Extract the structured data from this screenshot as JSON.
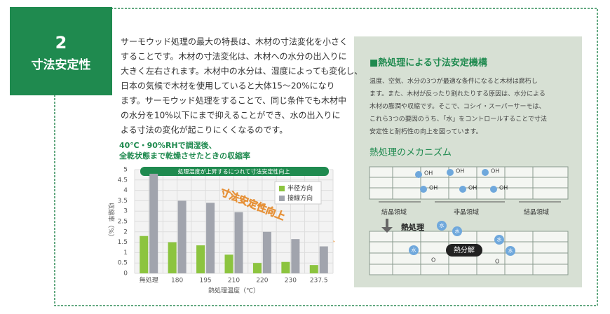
{
  "badge": {
    "number": "2",
    "title": "寸法安定性"
  },
  "body": {
    "lines": [
      "サーモウッド処理の最大の特長は、木材の寸法変化を小さく",
      "することです。木材の寸法変化は、木材への水分の出入りに",
      "大きく左右されます。木材中の水分は、湿度によっても変化し、",
      "日本の気候で木材を使用していると大体15〜20%になり",
      "ます。サーモウッド処理をすることで、同じ条件でも木材中",
      "の水分を10%以下にまで抑えることができ、水の出入りに",
      "よる寸法の変化が起こりにくくなるのです。"
    ]
  },
  "chart_data": {
    "type": "bar",
    "title": [
      "40℃・90%RHで調湿後、",
      "全乾状態まで乾燥させたときの収縮率"
    ],
    "banner": "処理温度が上昇するにつれて寸法安定性向上",
    "annotation": "寸法安定性向上",
    "x_label": "熱処理温度（℃）",
    "y_label": "収縮率（%）",
    "categories": [
      "無処理",
      "180",
      "195",
      "210",
      "220",
      "230",
      "237.5"
    ],
    "series": [
      {
        "name": "半径方向",
        "color": "#8cc43f",
        "values": [
          1.8,
          1.5,
          1.35,
          0.9,
          0.5,
          0.55,
          0.4
        ]
      },
      {
        "name": "接線方向",
        "color": "#a1a4ad",
        "values": [
          4.8,
          3.5,
          3.4,
          2.95,
          2.0,
          1.65,
          1.3
        ]
      }
    ],
    "ylim": [
      0,
      5
    ],
    "yticks": [
      0,
      0.5,
      1,
      1.5,
      2,
      2.5,
      3,
      3.5,
      4,
      4.5,
      5
    ],
    "grid": true
  },
  "panel": {
    "heading": "■熱処理による寸法安定機構",
    "lines": [
      "温度、空気、水分の3つが最適な条件になると木材は腐朽し",
      "ます。また、木材が反ったり割れたりする原因は、水分による",
      "木材の膨潤や収縮です。そこで、コシイ・スーパーサーモは、",
      "これら3つの要因のうち、「水」をコントロールすることで寸法",
      "安定性と耐朽性の向上を図っています。"
    ],
    "subheading": "熱処理のメカニズム",
    "diagram": {
      "crystal": "結晶領域",
      "amorphous": "非晶領域",
      "heat": "熱処理",
      "decomp": "熱分解",
      "oh": "OH",
      "water": "水",
      "o": "O"
    }
  }
}
